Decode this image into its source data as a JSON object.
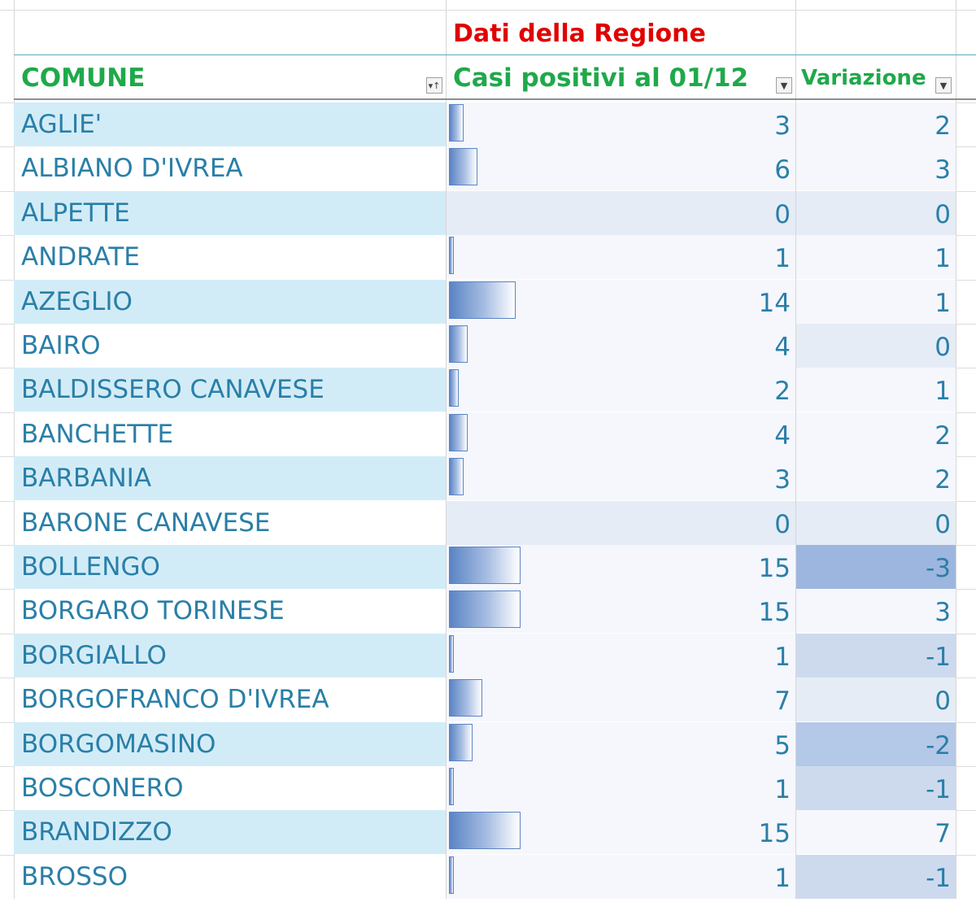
{
  "sheet": {
    "region_title": "Dati della Regione",
    "headers": {
      "comune": "COMUNE",
      "casi": "Casi positivi al 01/12",
      "variazione": "Variazione"
    },
    "rows": [
      {
        "comune": "AGLIE'",
        "casi": 3,
        "variazione": 2
      },
      {
        "comune": "ALBIANO D'IVREA",
        "casi": 6,
        "variazione": 3
      },
      {
        "comune": "ALPETTE",
        "casi": 0,
        "variazione": 0
      },
      {
        "comune": "ANDRATE",
        "casi": 1,
        "variazione": 1
      },
      {
        "comune": "AZEGLIO",
        "casi": 14,
        "variazione": 1
      },
      {
        "comune": "BAIRO",
        "casi": 4,
        "variazione": 0
      },
      {
        "comune": "BALDISSERO CANAVESE",
        "casi": 2,
        "variazione": 1
      },
      {
        "comune": "BANCHETTE",
        "casi": 4,
        "variazione": 2
      },
      {
        "comune": "BARBANIA",
        "casi": 3,
        "variazione": 2
      },
      {
        "comune": "BARONE CANAVESE",
        "casi": 0,
        "variazione": 0
      },
      {
        "comune": "BOLLENGO",
        "casi": 15,
        "variazione": -3
      },
      {
        "comune": "BORGARO TORINESE",
        "casi": 15,
        "variazione": 3
      },
      {
        "comune": "BORGIALLO",
        "casi": 1,
        "variazione": -1
      },
      {
        "comune": "BORGOFRANCO D'IVREA",
        "casi": 7,
        "variazione": 0
      },
      {
        "comune": "BORGOMASINO",
        "casi": 5,
        "variazione": -2
      },
      {
        "comune": "BOSCONERO",
        "casi": 1,
        "variazione": -1
      },
      {
        "comune": "BRANDIZZO",
        "casi": 15,
        "variazione": 7
      },
      {
        "comune": "BROSSO",
        "casi": 1,
        "variazione": -1
      }
    ],
    "colors": {
      "region_title": "#e00000",
      "header_green": "#1fa94a",
      "row_text": "#2a7fa8",
      "row_band": "#d2ecf7",
      "databar": "#5b84c4"
    },
    "icons": [
      "sort-filter-icon",
      "dropdown-filter-icon",
      "dropdown-filter-icon"
    ]
  }
}
